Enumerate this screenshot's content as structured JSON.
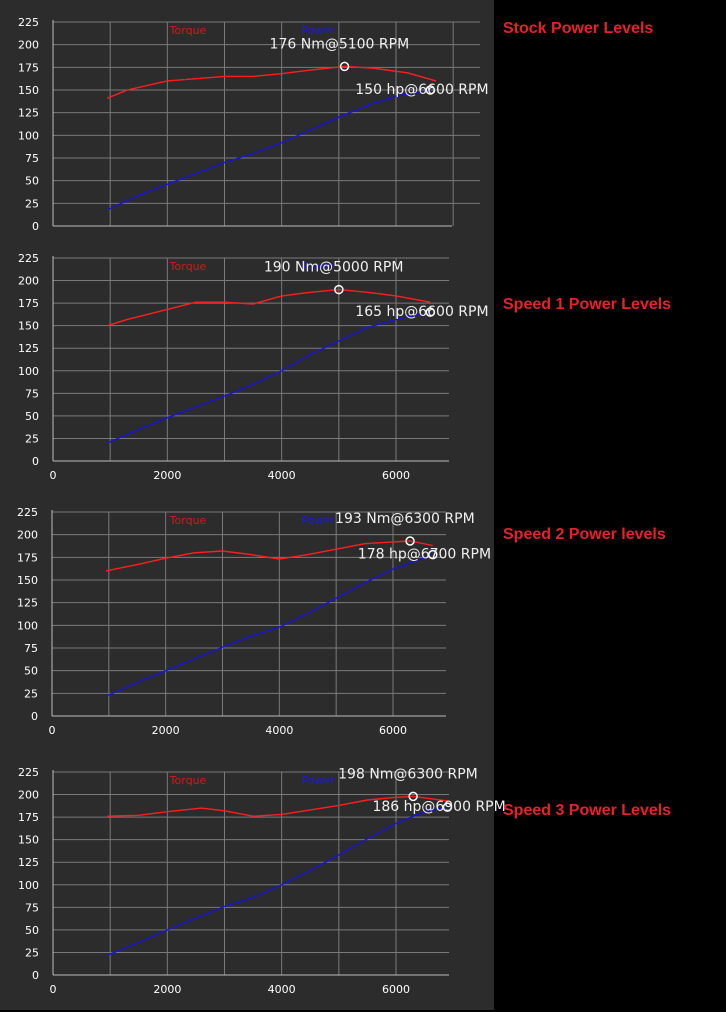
{
  "chart_data": [
    {
      "type": "line",
      "side_label": "Stock Power Levels",
      "legend": [
        "Torque",
        "Power"
      ],
      "yticks": [
        "225",
        "200",
        "175",
        "150",
        "125",
        "100",
        "75",
        "50",
        "25",
        "0"
      ],
      "xticks": [],
      "xlim": [
        0,
        7000
      ],
      "ylim": [
        0,
        225
      ],
      "series": [
        {
          "name": "Torque",
          "x": [
            950,
            1300,
            2000,
            3000,
            3500,
            4000,
            4500,
            5100,
            5600,
            6200,
            6700
          ],
          "values": [
            141,
            150,
            160,
            165,
            165,
            168,
            172,
            176,
            174,
            169,
            160
          ]
        },
        {
          "name": "Power",
          "x": [
            950,
            1500,
            2000,
            2500,
            3000,
            3500,
            4000,
            4500,
            5000,
            5500,
            6000,
            6600
          ],
          "values": [
            18,
            34,
            46,
            58,
            70,
            80,
            92,
            106,
            120,
            133,
            143,
            150
          ]
        }
      ],
      "annotations": [
        {
          "text": "176 Nm@5100 RPM",
          "x": 5100,
          "y": 176
        },
        {
          "text": "150 hp@6600 RPM",
          "x": 6600,
          "y": 150
        }
      ]
    },
    {
      "type": "line",
      "side_label": "Speed 1 Power Levels",
      "legend": [
        "Torque",
        "Power"
      ],
      "yticks": [
        "225",
        "200",
        "175",
        "150",
        "125",
        "100",
        "75",
        "50",
        "25",
        "0"
      ],
      "xticks": [
        "0",
        "2000",
        "4000",
        "6000"
      ],
      "xlim": [
        0,
        7000
      ],
      "ylim": [
        0,
        225
      ],
      "series": [
        {
          "name": "Torque",
          "x": [
            950,
            1300,
            2000,
            2500,
            3000,
            3500,
            4000,
            4500,
            5000,
            5500,
            6000,
            6600
          ],
          "values": [
            150,
            157,
            168,
            176,
            176,
            174,
            183,
            187,
            190,
            187,
            183,
            176
          ]
        },
        {
          "name": "Power",
          "x": [
            950,
            1500,
            2000,
            2500,
            3000,
            3500,
            4000,
            4500,
            5000,
            5500,
            6000,
            6600
          ],
          "values": [
            20,
            35,
            48,
            60,
            72,
            85,
            100,
            118,
            133,
            148,
            157,
            165
          ]
        }
      ],
      "annotations": [
        {
          "text": "190 Nm@5000 RPM",
          "x": 5000,
          "y": 190
        },
        {
          "text": "165 hp@6600 RPM",
          "x": 6600,
          "y": 165
        }
      ]
    },
    {
      "type": "line",
      "side_label": "Speed 2 Power levels",
      "legend": [
        "Torque",
        "Power"
      ],
      "yticks": [
        "225",
        "200",
        "175",
        "150",
        "125",
        "100",
        "75",
        "50",
        "25",
        "0"
      ],
      "xticks": [
        "0",
        "2000",
        "4000",
        "6000"
      ],
      "xlim": [
        0,
        7000
      ],
      "ylim": [
        0,
        225
      ],
      "series": [
        {
          "name": "Torque",
          "x": [
            950,
            1500,
            2000,
            2500,
            3000,
            3500,
            4000,
            4500,
            5000,
            5500,
            6000,
            6300,
            6700
          ],
          "values": [
            160,
            167,
            174,
            180,
            182,
            178,
            173,
            178,
            184,
            190,
            192,
            193,
            188
          ]
        },
        {
          "name": "Power",
          "x": [
            950,
            1500,
            2000,
            2500,
            3000,
            3500,
            4000,
            4500,
            5000,
            5500,
            6000,
            6700
          ],
          "values": [
            22,
            37,
            50,
            63,
            76,
            88,
            98,
            113,
            130,
            147,
            162,
            178
          ]
        }
      ],
      "annotations": [
        {
          "text": "193 Nm@6300 RPM",
          "x": 6300,
          "y": 193
        },
        {
          "text": "178 hp@6700 RPM",
          "x": 6700,
          "y": 178
        }
      ]
    },
    {
      "type": "line",
      "side_label": "Speed 3 Power Levels",
      "legend": [
        "Torque",
        "Power"
      ],
      "yticks": [
        "225",
        "200",
        "175",
        "150",
        "125",
        "100",
        "75",
        "50",
        "25",
        "0"
      ],
      "xticks": [
        "0",
        "2000",
        "4000",
        "6000"
      ],
      "xlim": [
        0,
        7000
      ],
      "ylim": [
        0,
        225
      ],
      "series": [
        {
          "name": "Torque",
          "x": [
            950,
            1500,
            2000,
            2600,
            3000,
            3500,
            4000,
            4500,
            5000,
            5500,
            6000,
            6300,
            6900
          ],
          "values": [
            176,
            177,
            181,
            185,
            182,
            176,
            178,
            183,
            188,
            194,
            197,
            198,
            193
          ]
        },
        {
          "name": "Power",
          "x": [
            950,
            1500,
            2000,
            2500,
            3000,
            3500,
            4000,
            4500,
            5000,
            5500,
            6000,
            6500,
            6900
          ],
          "values": [
            22,
            36,
            50,
            63,
            76,
            86,
            100,
            116,
            133,
            151,
            168,
            181,
            186
          ]
        }
      ],
      "annotations": [
        {
          "text": "198 Nm@6300 RPM",
          "x": 6300,
          "y": 198
        },
        {
          "text": "186 hp@6900 RPM",
          "x": 6900,
          "y": 186
        }
      ]
    }
  ]
}
